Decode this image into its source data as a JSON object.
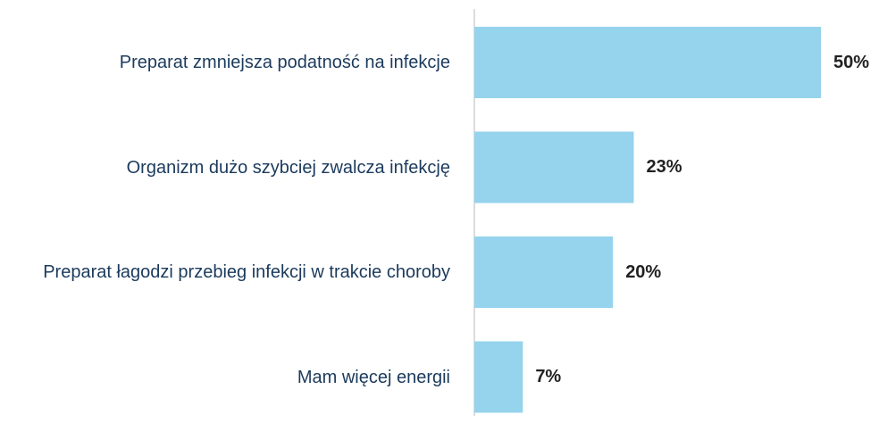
{
  "chart_data": {
    "type": "hbar",
    "categories": [
      "Preparat zmniejsza podatność na infekcje",
      "Organizm dużo szybciej zwalcza infekcję",
      "Preparat łagodzi przebieg infekcji w trakcie choroby",
      "Mam więcej energii"
    ],
    "values": [
      50,
      23,
      20,
      7
    ],
    "value_labels": [
      "50%",
      "23%",
      "20%",
      "7%"
    ],
    "color": "#96d3ec"
  }
}
